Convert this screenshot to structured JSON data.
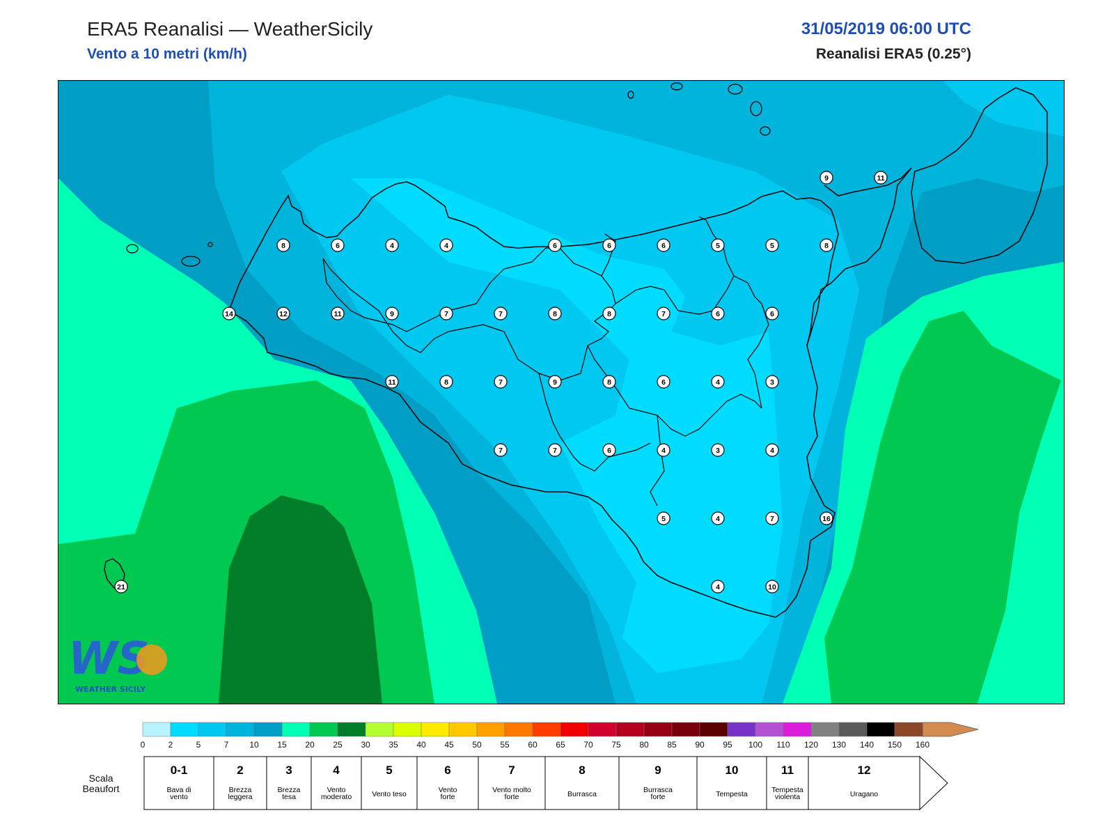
{
  "header": {
    "title": "ERA5 Reanalisi — WeatherSicily",
    "subtitle": "Vento a 10 metri (km/h)",
    "datetime": "31/05/2019 06:00 UTC",
    "source": "Reanalisi ERA5 (0.25°)"
  },
  "map": {
    "stations": [
      {
        "v": "8"
      },
      {
        "v": "6"
      },
      {
        "v": "4"
      },
      {
        "v": "4"
      },
      {
        "v": "6"
      },
      {
        "v": "6"
      },
      {
        "v": "6"
      },
      {
        "v": "5"
      },
      {
        "v": "5"
      },
      {
        "v": "8"
      },
      {
        "v": "14"
      },
      {
        "v": "12"
      },
      {
        "v": "11"
      },
      {
        "v": "9"
      },
      {
        "v": "7"
      },
      {
        "v": "7"
      },
      {
        "v": "8"
      },
      {
        "v": "8"
      },
      {
        "v": "7"
      },
      {
        "v": "6"
      },
      {
        "v": "6"
      },
      {
        "v": "11"
      },
      {
        "v": "8"
      },
      {
        "v": "7"
      },
      {
        "v": "9"
      },
      {
        "v": "8"
      },
      {
        "v": "6"
      },
      {
        "v": "4"
      },
      {
        "v": "3"
      },
      {
        "v": "7"
      },
      {
        "v": "7"
      },
      {
        "v": "6"
      },
      {
        "v": "4"
      },
      {
        "v": "3"
      },
      {
        "v": "4"
      },
      {
        "v": "5"
      },
      {
        "v": "4"
      },
      {
        "v": "7"
      },
      {
        "v": "16"
      },
      {
        "v": "4"
      },
      {
        "v": "10"
      },
      {
        "v": "9"
      },
      {
        "v": "11"
      },
      {
        "v": "21"
      }
    ]
  },
  "logo": {
    "letters": "WS",
    "text": "WEATHER SICILY"
  },
  "legend": {
    "colors": [
      "#b8f4ff",
      "#00dcff",
      "#00c8f0",
      "#00b4dc",
      "#009ec4",
      "#00ffb4",
      "#00c850",
      "#007d28",
      "#b4ff32",
      "#dcff00",
      "#ffeb00",
      "#ffc800",
      "#ffa000",
      "#ff7800",
      "#ff3c00",
      "#f00000",
      "#d2002d",
      "#b4001e",
      "#960014",
      "#78000a",
      "#5a0000",
      "#7832c8",
      "#b450d2",
      "#dc1edc",
      "#828282",
      "#5a5a5a",
      "#000000",
      "#8c4628",
      "#d28c50"
    ],
    "ticks": [
      "0",
      "2",
      "5",
      "7",
      "10",
      "15",
      "20",
      "25",
      "30",
      "35",
      "40",
      "45",
      "50",
      "55",
      "60",
      "65",
      "70",
      "75",
      "80",
      "85",
      "90",
      "95",
      "100",
      "110",
      "120",
      "130",
      "140",
      "150",
      "160"
    ],
    "beaufort_label": [
      "Scala",
      "Beaufort"
    ],
    "beaufort": [
      {
        "num": "0-1",
        "name": [
          "Bava di",
          "vento"
        ]
      },
      {
        "num": "2",
        "name": [
          "Brezza",
          "leggera"
        ]
      },
      {
        "num": "3",
        "name": [
          "Brezza",
          "tesa"
        ]
      },
      {
        "num": "4",
        "name": [
          "Vento",
          "moderato"
        ]
      },
      {
        "num": "5",
        "name": [
          "Vento teso"
        ]
      },
      {
        "num": "6",
        "name": [
          "Vento",
          "forte"
        ]
      },
      {
        "num": "7",
        "name": [
          "Vento molto",
          "forte"
        ]
      },
      {
        "num": "8",
        "name": [
          "Burrasca"
        ]
      },
      {
        "num": "9",
        "name": [
          "Burrasca",
          "forte"
        ]
      },
      {
        "num": "10",
        "name": [
          "Tempesta"
        ]
      },
      {
        "num": "11",
        "name": [
          "Tempesta",
          "violenta"
        ]
      },
      {
        "num": "12",
        "name": [
          "Uragano"
        ]
      }
    ]
  }
}
